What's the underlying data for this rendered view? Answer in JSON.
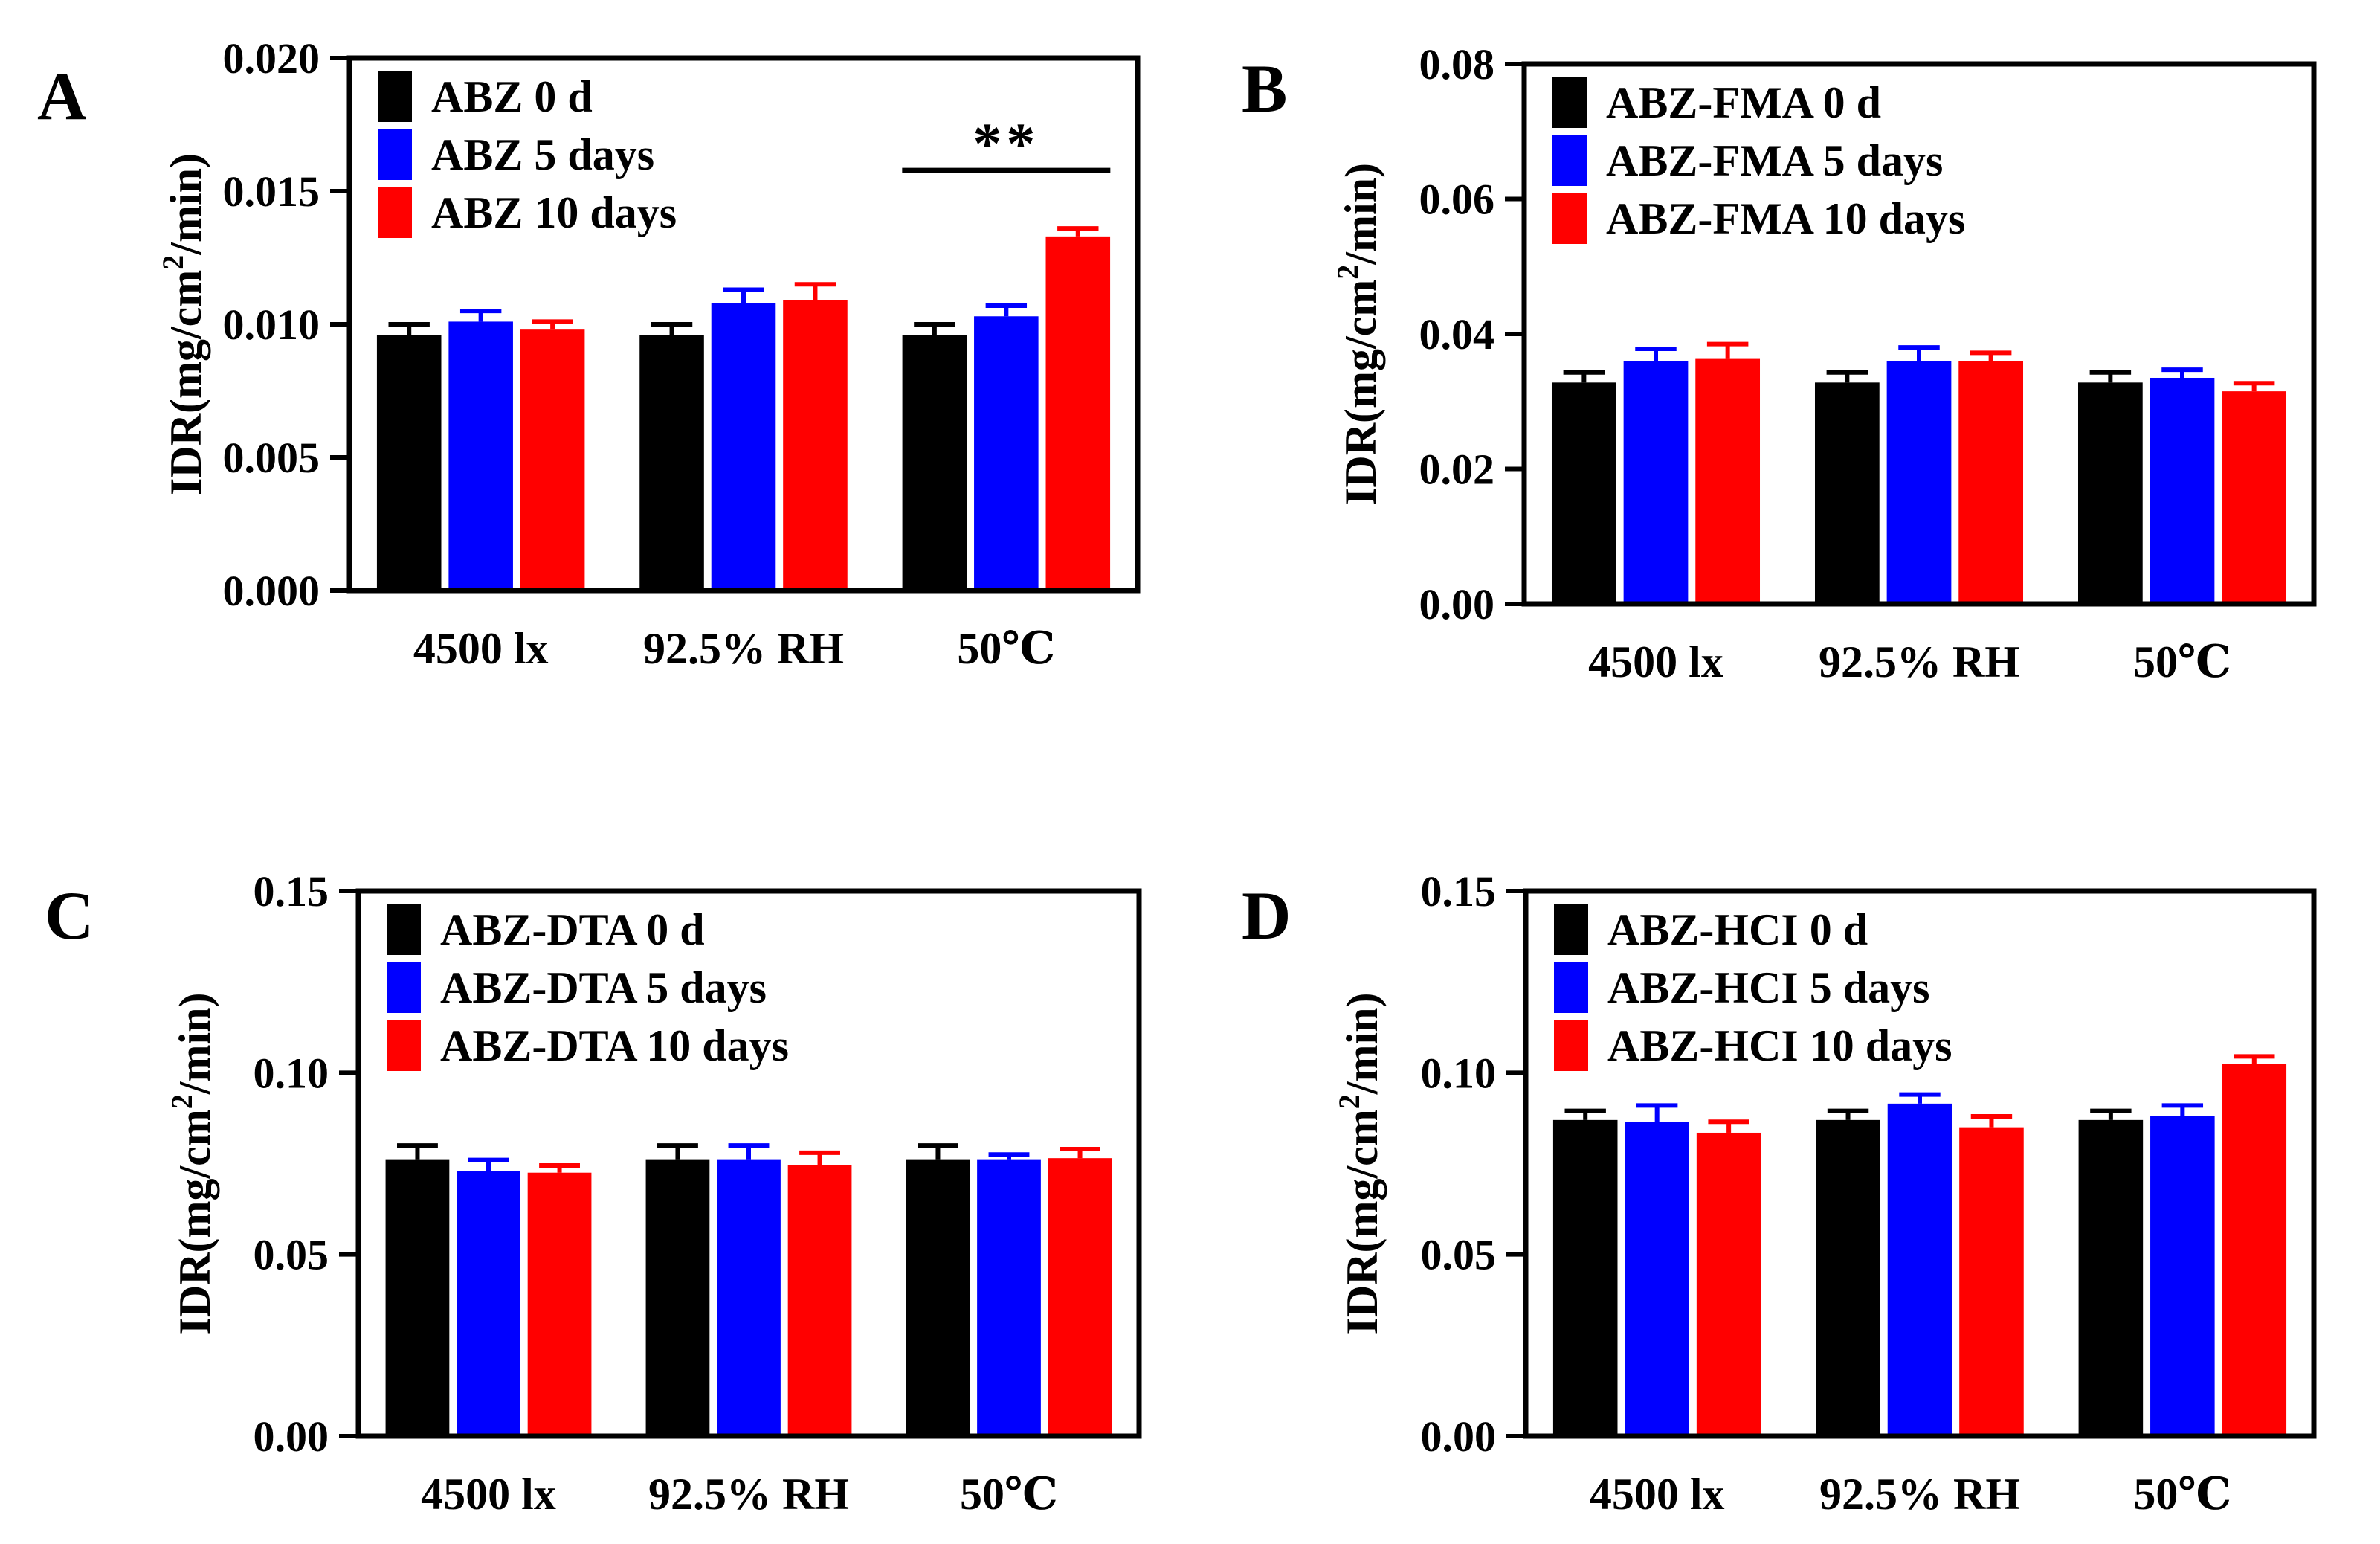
{
  "colors": {
    "day0": "#000000",
    "day5": "#0000FF",
    "day10": "#FF0000"
  },
  "chart_data": [
    {
      "panel": "A",
      "type": "bar",
      "ylabel": "IDR(mg/cm2/min)",
      "ylabel_main": "IDR(mg/cm",
      "ylabel_sup": "2",
      "ylabel_tail": "/min)",
      "ylim": [
        0,
        0.02
      ],
      "yticks": [
        "0.000",
        "0.005",
        "0.010",
        "0.015",
        "0.020"
      ],
      "categories": [
        "4500 lx",
        "92.5% RH",
        "50℃"
      ],
      "series": [
        {
          "name": "ABZ 0 d",
          "values": [
            0.0096,
            0.0096,
            0.0096
          ],
          "errors": [
            0.0004,
            0.0004,
            0.0004
          ]
        },
        {
          "name": "ABZ 5 days",
          "values": [
            0.0101,
            0.0108,
            0.0103
          ],
          "errors": [
            0.0004,
            0.0005,
            0.0004
          ]
        },
        {
          "name": "ABZ 10 days",
          "values": [
            0.0098,
            0.0109,
            0.0133
          ],
          "errors": [
            0.0003,
            0.0006,
            0.0003
          ]
        }
      ],
      "significance": {
        "label": "**",
        "category_index": 2
      }
    },
    {
      "panel": "B",
      "type": "bar",
      "ylabel": "IDR(mg/cm2/min)",
      "ylabel_main": "IDR(mg/cm",
      "ylabel_sup": "2",
      "ylabel_tail": "/min)",
      "ylim": [
        0,
        0.08
      ],
      "yticks": [
        "0.00",
        "0.02",
        "0.04",
        "0.06",
        "0.08"
      ],
      "categories": [
        "4500 lx",
        "92.5% RH",
        "50℃"
      ],
      "series": [
        {
          "name": "ABZ-FMA 0 d",
          "values": [
            0.0328,
            0.0328,
            0.0328
          ],
          "errors": [
            0.0015,
            0.0015,
            0.0015
          ]
        },
        {
          "name": "ABZ-FMA 5 days",
          "values": [
            0.036,
            0.036,
            0.0335
          ],
          "errors": [
            0.0018,
            0.002,
            0.0012
          ]
        },
        {
          "name": "ABZ-FMA 10 days",
          "values": [
            0.0363,
            0.036,
            0.0315
          ],
          "errors": [
            0.0022,
            0.0012,
            0.0012
          ]
        }
      ]
    },
    {
      "panel": "C",
      "type": "bar",
      "ylabel": "IDR(mg/cm2/min)",
      "ylabel_main": "IDR(mg/cm",
      "ylabel_sup": "2",
      "ylabel_tail": "/min)",
      "ylim": [
        0,
        0.15
      ],
      "yticks": [
        "0.00",
        "0.05",
        "0.10",
        "0.15"
      ],
      "categories": [
        "4500 lx",
        "92.5% RH",
        "50℃"
      ],
      "series": [
        {
          "name": "ABZ-DTA 0 d",
          "values": [
            0.076,
            0.076,
            0.076
          ],
          "errors": [
            0.004,
            0.004,
            0.004
          ]
        },
        {
          "name": "ABZ-DTA 5 days",
          "values": [
            0.073,
            0.076,
            0.076
          ],
          "errors": [
            0.003,
            0.004,
            0.0015
          ]
        },
        {
          "name": "ABZ-DTA 10 days",
          "values": [
            0.0725,
            0.0745,
            0.0765
          ],
          "errors": [
            0.002,
            0.0035,
            0.0025
          ]
        }
      ]
    },
    {
      "panel": "D",
      "type": "bar",
      "ylabel": "IDR(mg/cm2/min)",
      "ylabel_main": "IDR(mg/cm",
      "ylabel_sup": "2",
      "ylabel_tail": "/min)",
      "ylim": [
        0,
        0.15
      ],
      "yticks": [
        "0.00",
        "0.05",
        "0.10",
        "0.15"
      ],
      "categories": [
        "4500 lx",
        "92.5% RH",
        "50℃"
      ],
      "series": [
        {
          "name": "ABZ-HCI 0 d",
          "values": [
            0.087,
            0.087,
            0.087
          ],
          "errors": [
            0.0025,
            0.0025,
            0.0025
          ]
        },
        {
          "name": "ABZ-HCI 5 days",
          "values": [
            0.0865,
            0.0915,
            0.088
          ],
          "errors": [
            0.0045,
            0.0025,
            0.003
          ]
        },
        {
          "name": "ABZ-HCI 10 days",
          "values": [
            0.0835,
            0.085,
            0.1025
          ],
          "errors": [
            0.003,
            0.003,
            0.002
          ]
        }
      ]
    }
  ]
}
